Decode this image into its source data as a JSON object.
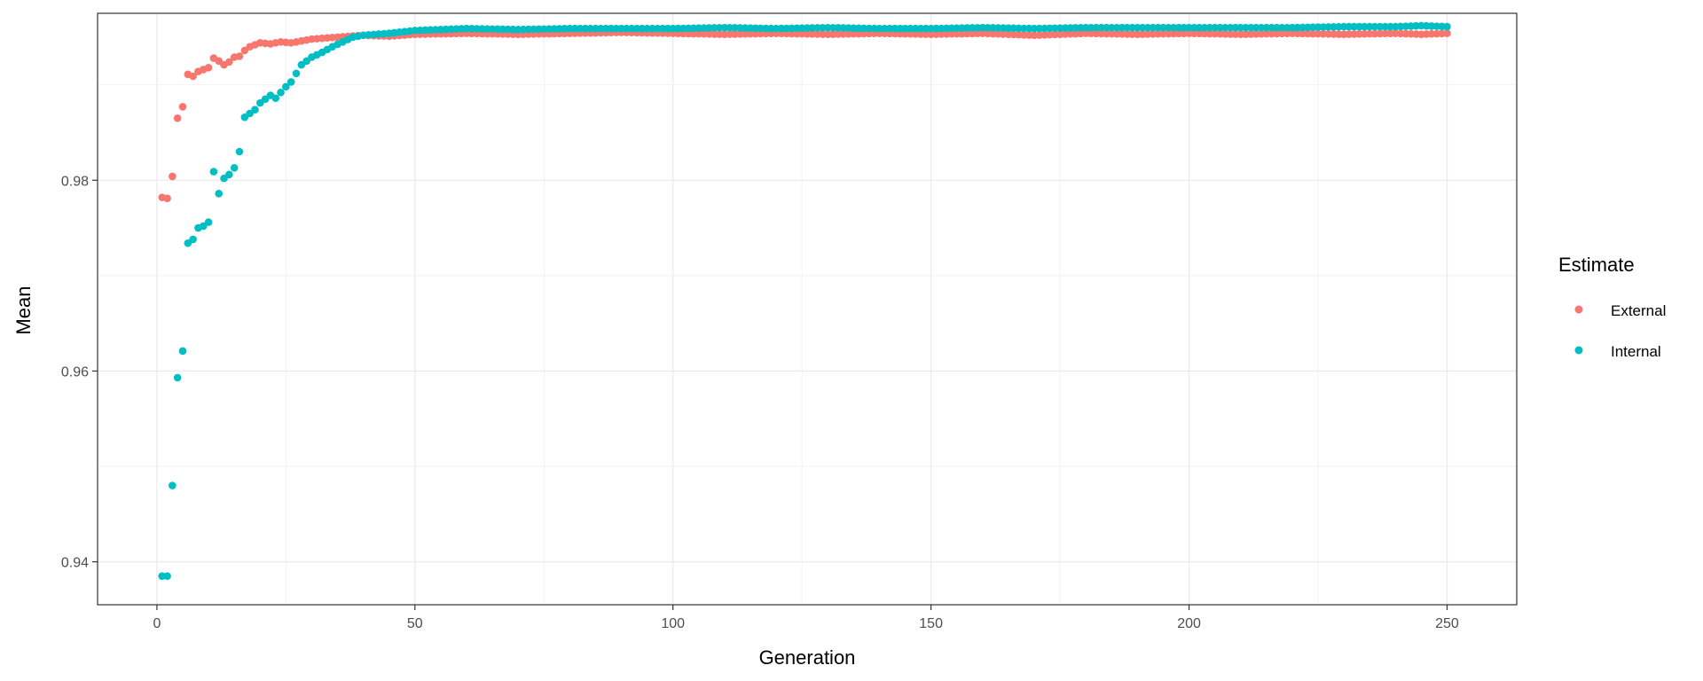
{
  "chart_data": {
    "type": "scatter",
    "title": "",
    "xlabel": "Generation",
    "ylabel": "Mean",
    "xlim": [
      -11.5,
      263.5
    ],
    "ylim": [
      0.9355,
      0.9975
    ],
    "x_ticks": [
      0,
      50,
      100,
      150,
      200,
      250
    ],
    "y_ticks": [
      0.94,
      0.96,
      0.98
    ],
    "grid": true,
    "legend": {
      "title": "Estimate",
      "placement": "right"
    },
    "series": [
      {
        "name": "External",
        "color": "#F8766D",
        "points": [
          [
            1,
            0.9782
          ],
          [
            2,
            0.9781
          ],
          [
            3,
            0.9804
          ],
          [
            4,
            0.9865
          ],
          [
            5,
            0.9877
          ],
          [
            6,
            0.9911
          ],
          [
            7,
            0.9909
          ],
          [
            8,
            0.9914
          ],
          [
            9,
            0.9916
          ],
          [
            10,
            0.9918
          ],
          [
            11,
            0.9928
          ],
          [
            12,
            0.9925
          ],
          [
            13,
            0.9921
          ],
          [
            14,
            0.9924
          ],
          [
            15,
            0.9929
          ],
          [
            16,
            0.993
          ],
          [
            17,
            0.9936
          ],
          [
            18,
            0.994
          ],
          [
            19,
            0.9942
          ],
          [
            20,
            0.9944
          ],
          [
            22,
            0.9943
          ],
          [
            24,
            0.9945
          ],
          [
            26,
            0.9944
          ],
          [
            28,
            0.9946
          ],
          [
            30,
            0.9948
          ],
          [
            35,
            0.995
          ],
          [
            40,
            0.9952
          ],
          [
            45,
            0.9951
          ],
          [
            50,
            0.9953
          ],
          [
            60,
            0.9954
          ],
          [
            70,
            0.9953
          ],
          [
            80,
            0.9954
          ],
          [
            90,
            0.9955
          ],
          [
            100,
            0.9954
          ],
          [
            110,
            0.9953
          ],
          [
            120,
            0.9954
          ],
          [
            130,
            0.9953
          ],
          [
            140,
            0.9954
          ],
          [
            150,
            0.9953
          ],
          [
            160,
            0.9954
          ],
          [
            170,
            0.9952
          ],
          [
            180,
            0.9954
          ],
          [
            190,
            0.9953
          ],
          [
            200,
            0.9954
          ],
          [
            210,
            0.9953
          ],
          [
            220,
            0.9954
          ],
          [
            230,
            0.9953
          ],
          [
            240,
            0.9954
          ],
          [
            245,
            0.9953
          ],
          [
            250,
            0.9954
          ]
        ]
      },
      {
        "name": "Internal",
        "color": "#00BFC4",
        "points": [
          [
            1,
            0.9385
          ],
          [
            2,
            0.9385
          ],
          [
            3,
            0.948
          ],
          [
            4,
            0.9593
          ],
          [
            5,
            0.9621
          ],
          [
            6,
            0.9734
          ],
          [
            7,
            0.9738
          ],
          [
            8,
            0.975
          ],
          [
            9,
            0.9752
          ],
          [
            10,
            0.9756
          ],
          [
            11,
            0.9809
          ],
          [
            12,
            0.9786
          ],
          [
            13,
            0.9802
          ],
          [
            14,
            0.9806
          ],
          [
            15,
            0.9813
          ],
          [
            16,
            0.983
          ],
          [
            17,
            0.9866
          ],
          [
            18,
            0.987
          ],
          [
            19,
            0.9874
          ],
          [
            20,
            0.9881
          ],
          [
            22,
            0.9889
          ],
          [
            23,
            0.9886
          ],
          [
            25,
            0.9898
          ],
          [
            26,
            0.9903
          ],
          [
            28,
            0.9921
          ],
          [
            30,
            0.9929
          ],
          [
            32,
            0.9934
          ],
          [
            34,
            0.994
          ],
          [
            36,
            0.9945
          ],
          [
            38,
            0.995
          ],
          [
            40,
            0.9952
          ],
          [
            45,
            0.9954
          ],
          [
            50,
            0.9957
          ],
          [
            60,
            0.9959
          ],
          [
            70,
            0.9958
          ],
          [
            80,
            0.9959
          ],
          [
            90,
            0.9959
          ],
          [
            100,
            0.9959
          ],
          [
            110,
            0.996
          ],
          [
            120,
            0.9959
          ],
          [
            130,
            0.996
          ],
          [
            140,
            0.9959
          ],
          [
            150,
            0.9959
          ],
          [
            160,
            0.996
          ],
          [
            170,
            0.9959
          ],
          [
            180,
            0.996
          ],
          [
            190,
            0.996
          ],
          [
            200,
            0.996
          ],
          [
            210,
            0.996
          ],
          [
            220,
            0.996
          ],
          [
            230,
            0.9961
          ],
          [
            240,
            0.9961
          ],
          [
            245,
            0.9962
          ],
          [
            250,
            0.9961
          ]
        ]
      }
    ]
  }
}
